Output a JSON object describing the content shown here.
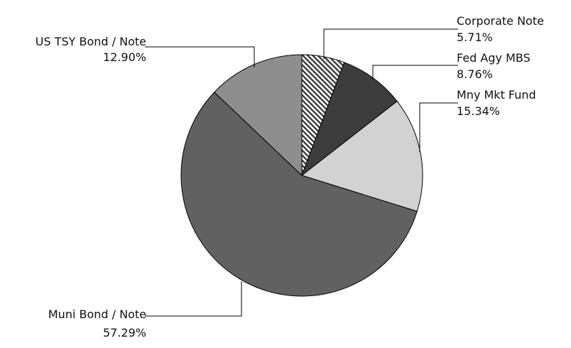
{
  "chart_data": {
    "type": "pie",
    "title": "",
    "start_angle_deg": 0,
    "direction": "clockwise",
    "slices": [
      {
        "label": "Corporate Note",
        "value": 5.71,
        "value_label": "5.71%",
        "color": "#ffffff",
        "pattern": "diagonal-hatch"
      },
      {
        "label": "Fed Agy MBS",
        "value": 8.76,
        "value_label": "8.76%",
        "color": "#3c3c3c"
      },
      {
        "label": "Mny Mkt Fund",
        "value": 15.34,
        "value_label": "15.34%",
        "color": "#d2d2d2"
      },
      {
        "label": "Muni Bond / Note",
        "value": 57.29,
        "value_label": "57.29%",
        "color": "#616161"
      },
      {
        "label": "US TSY Bond / Note",
        "value": 12.9,
        "value_label": "12.90%",
        "color": "#8e8e8e"
      }
    ]
  }
}
